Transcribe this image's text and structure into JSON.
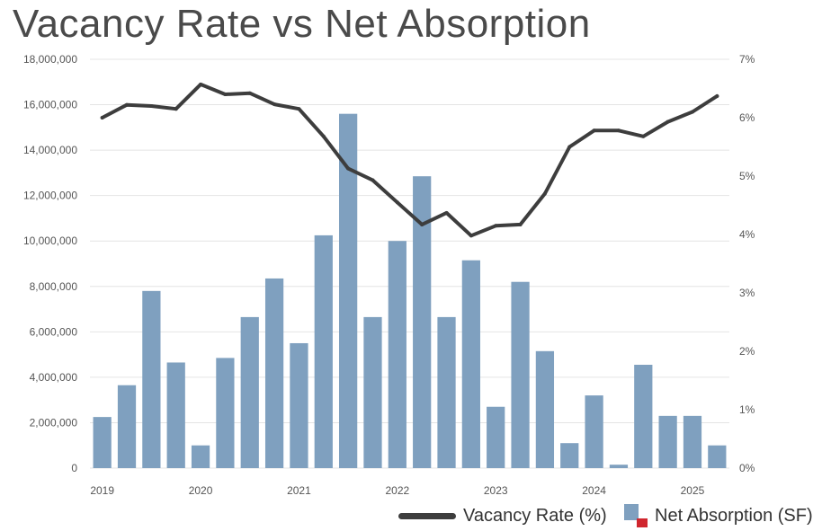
{
  "title": "Vacancy Rate vs Net Absorption",
  "colors": {
    "bar": "#7fa0bf",
    "line": "#3d3d3d",
    "grid": "#e4e4e4",
    "legend_accent": "#d0262e"
  },
  "legend": {
    "line_label": "Vacancy Rate (%)",
    "bar_label": "Net Absorption (SF)"
  },
  "chart_data": {
    "type": "bar",
    "title": "Vacancy Rate vs Net Absorption",
    "x_tick_labels": [
      "2019",
      "2020",
      "2021",
      "2022",
      "2023",
      "2024",
      "2025"
    ],
    "y_left_ticks": [
      "0",
      "2,000,000",
      "4,000,000",
      "6,000,000",
      "8,000,000",
      "10,000,000",
      "12,000,000",
      "14,000,000",
      "16,000,000",
      "18,000,000"
    ],
    "y_right_ticks": [
      "0%",
      "1%",
      "2%",
      "3%",
      "4%",
      "5%",
      "6%",
      "7%"
    ],
    "ylim_left": [
      0,
      18000000
    ],
    "ylim_right": [
      0,
      7
    ],
    "grid": true,
    "legend_position": "bottom-right",
    "series": [
      {
        "name": "Net Absorption (SF)",
        "type": "bar",
        "axis": "left",
        "values": [
          2250000,
          3650000,
          7800000,
          4650000,
          1000000,
          4850000,
          6650000,
          8350000,
          5500000,
          10250000,
          15600000,
          6650000,
          10000000,
          12850000,
          6650000,
          9150000,
          2700000,
          8200000,
          5150000,
          1100000,
          3200000,
          150000,
          4550000,
          2300000,
          2300000,
          1000000
        ]
      },
      {
        "name": "Vacancy Rate (%)",
        "type": "line",
        "axis": "right",
        "values": [
          6.0,
          6.22,
          6.2,
          6.15,
          6.57,
          6.4,
          6.42,
          6.23,
          6.15,
          5.68,
          5.13,
          4.93,
          4.55,
          4.17,
          4.37,
          3.98,
          4.15,
          4.17,
          4.7,
          5.5,
          5.78,
          5.78,
          5.68,
          5.93,
          6.1,
          6.37
        ]
      }
    ]
  }
}
